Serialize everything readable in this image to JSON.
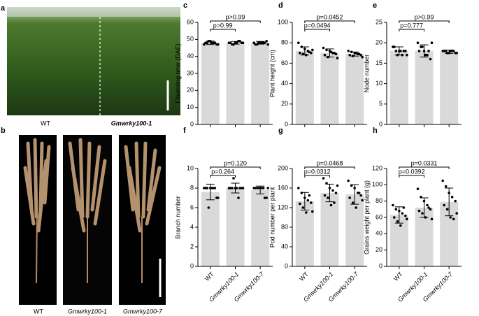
{
  "photos": {
    "a": {
      "letter": "a",
      "labels": [
        "WT",
        "Gmwrky100-1"
      ]
    },
    "b": {
      "letter": "b",
      "labels": [
        "WT",
        "Gmwrky100-1",
        "Gmwrky100-7"
      ]
    }
  },
  "chart_data": [
    {
      "type": "bar",
      "letter": "c",
      "ylabel": "Flowering time (DAE)",
      "categories": [
        null,
        null,
        null
      ],
      "color": "#d9d9d9",
      "values": [
        48,
        48,
        48
      ],
      "errors": [
        1,
        0.8,
        0.8
      ],
      "points": [
        [
          47,
          48,
          49,
          48,
          47,
          48,
          49,
          48,
          48,
          47
        ],
        [
          48,
          47,
          48,
          49,
          48,
          48,
          47,
          48,
          49,
          48
        ],
        [
          48,
          47,
          48,
          48,
          49,
          47,
          48,
          48,
          48,
          47
        ]
      ],
      "ylim": [
        0,
        60
      ],
      "yticks": [
        0,
        10,
        20,
        30,
        40,
        50,
        60
      ],
      "annotations": [
        "p>0.99",
        "p>0.99"
      ]
    },
    {
      "type": "bar",
      "letter": "d",
      "ylabel": "Plant height (cm)",
      "categories": [
        null,
        null,
        null
      ],
      "color": "#d9d9d9",
      "values": [
        72,
        70,
        69
      ],
      "errors": [
        4,
        4,
        2
      ],
      "points": [
        [
          80,
          76,
          74,
          72,
          70,
          70,
          69,
          68,
          71,
          73
        ],
        [
          75,
          73,
          72,
          70,
          69,
          68,
          66,
          71,
          70,
          65
        ],
        [
          72,
          71,
          70,
          69,
          68,
          68,
          67,
          70,
          69,
          66
        ]
      ],
      "ylim": [
        0,
        100
      ],
      "yticks": [
        0,
        20,
        40,
        60,
        80,
        100
      ],
      "annotations": [
        "p=0.0494",
        "p=0.0452"
      ]
    },
    {
      "type": "bar",
      "letter": "e",
      "ylabel": "Node number",
      "categories": [
        null,
        null,
        null
      ],
      "color": "#d9d9d9",
      "values": [
        18,
        18,
        17.8
      ],
      "errors": [
        1,
        1.5,
        0.4
      ],
      "points": [
        [
          19,
          18,
          18,
          17,
          18,
          19,
          17,
          18,
          18,
          17
        ],
        [
          20,
          19,
          18,
          17,
          16,
          18,
          19,
          17,
          18,
          20
        ],
        [
          18,
          18,
          17.5,
          18,
          17.5,
          18,
          17.5,
          18,
          18,
          17.5
        ]
      ],
      "ylim": [
        0,
        25
      ],
      "yticks": [
        0,
        5,
        10,
        15,
        20,
        25
      ],
      "annotations": [
        "p=0.777",
        "p>0.99"
      ]
    },
    {
      "type": "bar",
      "letter": "f",
      "ylabel": "Branch number",
      "categories": [
        "WT",
        "Gmwrky100-1",
        "Gmwrky100-7"
      ],
      "color": "#d9d9d9",
      "values": [
        7.6,
        8,
        7.8
      ],
      "errors": [
        0.8,
        0.5,
        0.4
      ],
      "points": [
        [
          8,
          8,
          8,
          8,
          7,
          8,
          6,
          8,
          8,
          7
        ],
        [
          8,
          8,
          8,
          7,
          8,
          8,
          9,
          8,
          8,
          8
        ],
        [
          8,
          8,
          8,
          8,
          7,
          8,
          8,
          8,
          7,
          8
        ]
      ],
      "ylim": [
        0,
        10
      ],
      "yticks": [
        0,
        2,
        4,
        6,
        8,
        10
      ],
      "annotations": [
        "p=0.264",
        "p=0.120"
      ]
    },
    {
      "type": "bar",
      "letter": "g",
      "ylabel": "Pod number per plant",
      "categories": [
        "WT",
        "Gmwrky100-1",
        "Gmwrky100-7"
      ],
      "color": "#d9d9d9",
      "values": [
        133,
        150,
        147
      ],
      "errors": [
        18,
        18,
        20
      ],
      "points": [
        [
          160,
          150,
          140,
          135,
          130,
          128,
          120,
          110,
          145,
          112
        ],
        [
          180,
          170,
          160,
          155,
          150,
          145,
          140,
          125,
          130,
          165
        ],
        [
          175,
          165,
          160,
          150,
          145,
          140,
          130,
          120,
          150,
          135
        ]
      ],
      "ylim": [
        0,
        200
      ],
      "yticks": [
        0,
        40,
        80,
        120,
        160,
        200
      ],
      "annotations": [
        "p=0.0312",
        "p=0.0468"
      ]
    },
    {
      "type": "bar",
      "letter": "h",
      "ylabel": "Grains weight per plant (g)",
      "categories": [
        "WT",
        "Gmwrky100-1",
        "Gmwrky100-7"
      ],
      "color": "#d9d9d9",
      "values": [
        63,
        72,
        79
      ],
      "errors": [
        10,
        12,
        17
      ],
      "points": [
        [
          75,
          70,
          68,
          65,
          62,
          60,
          55,
          50,
          72,
          58
        ],
        [
          95,
          85,
          80,
          75,
          70,
          68,
          65,
          60,
          72,
          58
        ],
        [
          105,
          98,
          90,
          85,
          80,
          75,
          70,
          60,
          58,
          65
        ]
      ],
      "ylim": [
        0,
        120
      ],
      "yticks": [
        0,
        20,
        40,
        60,
        80,
        100,
        120
      ],
      "annotations": [
        "p=0.0392",
        "p=0.0331"
      ]
    }
  ]
}
